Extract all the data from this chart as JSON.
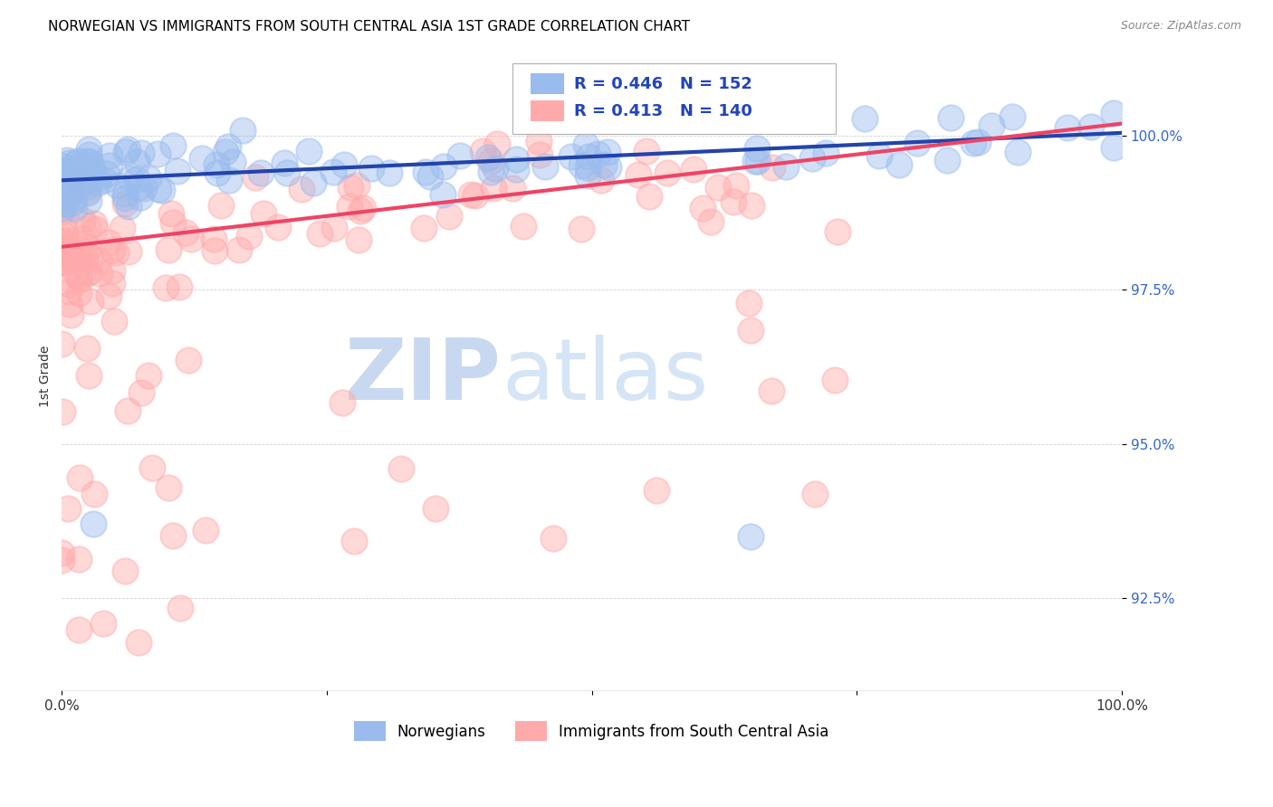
{
  "title": "NORWEGIAN VS IMMIGRANTS FROM SOUTH CENTRAL ASIA 1ST GRADE CORRELATION CHART",
  "source": "Source: ZipAtlas.com",
  "ylabel": "1st Grade",
  "y_ticks": [
    92.5,
    95.0,
    97.5,
    100.0
  ],
  "y_tick_labels": [
    "92.5%",
    "95.0%",
    "97.5%",
    "100.0%"
  ],
  "x_range": [
    0.0,
    1.0
  ],
  "y_range": [
    91.0,
    101.2
  ],
  "blue_R": 0.446,
  "blue_N": 152,
  "pink_R": 0.413,
  "pink_N": 140,
  "blue_color": "#99BBEE",
  "pink_color": "#FFAAAA",
  "blue_edge_color": "#99BBEE",
  "pink_edge_color": "#FFAAAA",
  "blue_line_color": "#2244AA",
  "pink_line_color": "#EE4466",
  "legend_blue_label": "Norwegians",
  "legend_pink_label": "Immigrants from South Central Asia",
  "watermark_zip": "ZIP",
  "watermark_atlas": "atlas",
  "blue_seed": 42,
  "pink_seed": 123,
  "blue_trend_x0": 0.0,
  "blue_trend_y0": 99.28,
  "blue_trend_x1": 1.0,
  "blue_trend_y1": 100.05,
  "pink_trend_x0": 0.0,
  "pink_trend_y0": 98.2,
  "pink_trend_x1": 1.0,
  "pink_trend_y1": 100.2
}
